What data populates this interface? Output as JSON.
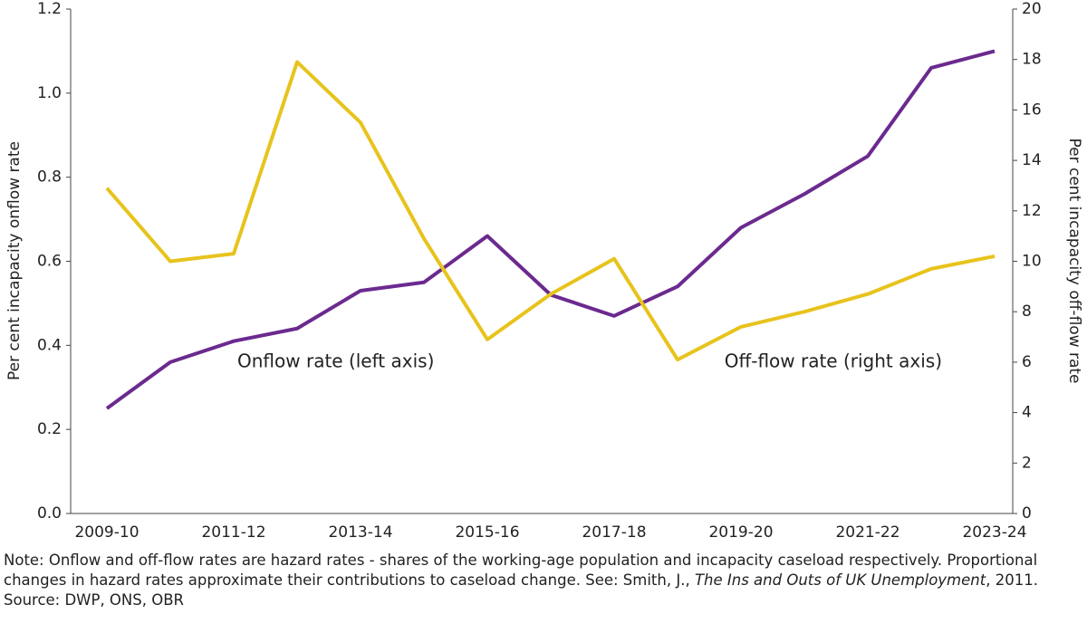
{
  "chart_data": {
    "type": "line",
    "categories": [
      "2009-10",
      null,
      "2011-12",
      null,
      "2013-14",
      null,
      "2015-16",
      null,
      "2017-18",
      null,
      "2019-20",
      null,
      "2021-22",
      null,
      "2023-24"
    ],
    "series": [
      {
        "name": "Onflow rate",
        "color": "#6b2a8f",
        "values": [
          0.25,
          0.36,
          0.41,
          0.44,
          0.53,
          0.55,
          0.66,
          0.52,
          0.47,
          0.54,
          0.68,
          0.76,
          0.85,
          1.06,
          1.1
        ]
      },
      {
        "name": "Off-flow rate",
        "color": "#e7c31c",
        "axis": "y2",
        "values": [
          12.9,
          10.0,
          10.3,
          17.9,
          15.5,
          10.9,
          6.9,
          8.7,
          10.1,
          6.1,
          7.4,
          8.0,
          8.7,
          9.7,
          10.2
        ]
      }
    ],
    "annotations": [
      "Onflow rate (left axis)",
      "Off-flow rate (right axis)"
    ],
    "ylabel": "Per cent incapacity onflow rate",
    "y2label": "Per cent incapacity off-flow rate",
    "ylim": [
      0,
      1.2
    ],
    "yticks": [
      {
        "value": 0,
        "label": "0.0"
      },
      0.2,
      0.4,
      0.6,
      0.8,
      {
        "value": 1,
        "label": "1.0"
      },
      1.2
    ],
    "y2lim": [
      0,
      20
    ],
    "y2ticks": [
      0,
      2,
      4,
      6,
      8,
      10,
      12,
      14,
      16,
      18,
      20
    ],
    "note": [
      "Note: Onflow and off-flow rates are hazard rates - shares of the working-age population and incapacity caseload respectively. Proportional changes in hazard rates approximate their contributions to caseload change. See: Smith, J., ",
      "The Ins and Outs of UK Unemployment",
      ", 2011."
    ],
    "source": "Source: DWP, ONS, OBR"
  }
}
